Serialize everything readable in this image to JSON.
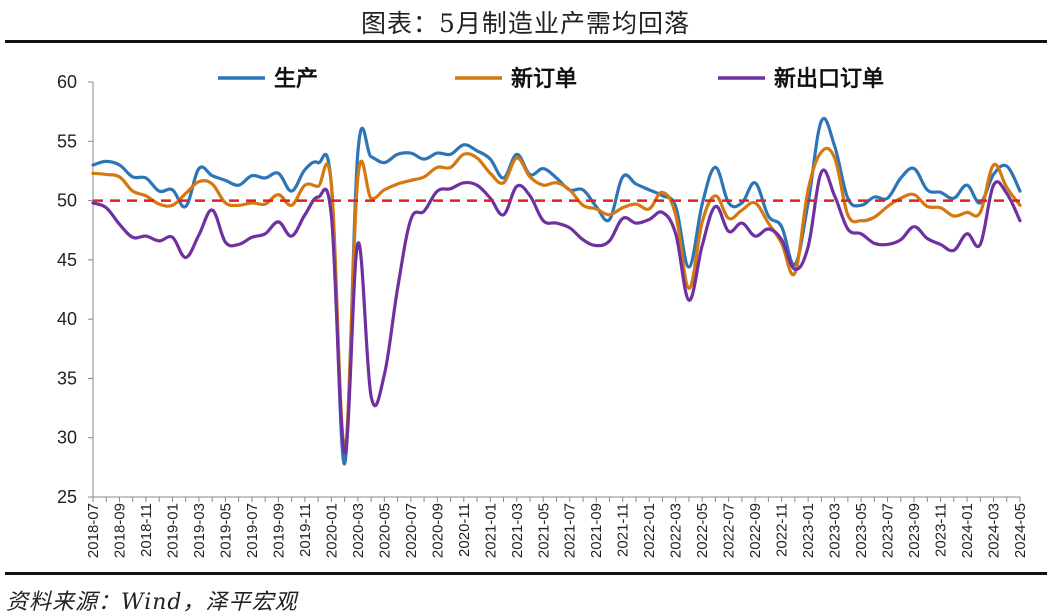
{
  "title": "图表：5月制造业产需均回落",
  "source": "资料来源：Wind，泽平宏观",
  "chart_data": {
    "type": "line",
    "ylim": [
      25,
      60
    ],
    "yticks": [
      25,
      30,
      35,
      40,
      45,
      50,
      55,
      60
    ],
    "reference_line": {
      "value": 50,
      "color": "#e02020",
      "style": "dashed"
    },
    "legend_position": "top",
    "x": [
      "2018-07",
      "2018-08",
      "2018-09",
      "2018-10",
      "2018-11",
      "2018-12",
      "2019-01",
      "2019-02",
      "2019-03",
      "2019-04",
      "2019-05",
      "2019-06",
      "2019-07",
      "2019-08",
      "2019-09",
      "2019-10",
      "2019-11",
      "2019-12",
      "2020-01",
      "2020-02",
      "2020-03",
      "2020-04",
      "2020-05",
      "2020-06",
      "2020-07",
      "2020-08",
      "2020-09",
      "2020-10",
      "2020-11",
      "2020-12",
      "2021-01",
      "2021-02",
      "2021-03",
      "2021-04",
      "2021-05",
      "2021-06",
      "2021-07",
      "2021-08",
      "2021-09",
      "2021-10",
      "2021-11",
      "2021-12",
      "2022-01",
      "2022-02",
      "2022-03",
      "2022-04",
      "2022-05",
      "2022-06",
      "2022-07",
      "2022-08",
      "2022-09",
      "2022-10",
      "2022-11",
      "2022-12",
      "2023-01",
      "2023-02",
      "2023-03",
      "2023-04",
      "2023-05",
      "2023-06",
      "2023-07",
      "2023-08",
      "2023-09",
      "2023-10",
      "2023-11",
      "2023-12",
      "2024-01",
      "2024-02",
      "2024-03",
      "2024-04",
      "2024-05"
    ],
    "xtick_labels": [
      "2018-07",
      "2018-09",
      "2018-11",
      "2019-01",
      "2019-03",
      "2019-05",
      "2019-07",
      "2019-09",
      "2019-11",
      "2020-01",
      "2020-03",
      "2020-05",
      "2020-07",
      "2020-09",
      "2020-11",
      "2021-01",
      "2021-03",
      "2021-05",
      "2021-07",
      "2021-09",
      "2021-11",
      "2022-01",
      "2022-03",
      "2022-05",
      "2022-07",
      "2022-09",
      "2022-11",
      "2023-01",
      "2023-03",
      "2023-05",
      "2023-07",
      "2023-09",
      "2023-11",
      "2024-01",
      "2024-03",
      "2024-05"
    ],
    "series": [
      {
        "name": "生产",
        "color": "#2e75b6",
        "values": [
          53.0,
          53.3,
          53.0,
          52.0,
          51.9,
          50.8,
          50.9,
          49.5,
          52.7,
          52.1,
          51.7,
          51.3,
          52.1,
          51.9,
          52.3,
          50.8,
          52.6,
          53.2,
          51.3,
          27.8,
          54.1,
          53.7,
          53.2,
          53.9,
          54.0,
          53.5,
          54.0,
          53.9,
          54.7,
          54.2,
          53.5,
          51.9,
          53.9,
          52.2,
          52.7,
          51.9,
          50.9,
          50.9,
          49.5,
          48.4,
          52.0,
          51.4,
          50.9,
          50.4,
          49.5,
          44.4,
          49.7,
          52.8,
          49.8,
          49.8,
          51.5,
          48.7,
          47.8,
          44.6,
          49.8,
          56.7,
          54.6,
          50.2,
          49.6,
          50.3,
          50.2,
          51.9,
          52.7,
          50.9,
          50.7,
          50.2,
          51.3,
          49.8,
          52.2,
          52.9,
          50.8
        ]
      },
      {
        "name": "新订单",
        "color": "#d4780f",
        "values": [
          52.3,
          52.2,
          52.0,
          50.8,
          50.4,
          49.7,
          49.6,
          50.6,
          51.6,
          51.4,
          49.8,
          49.6,
          49.8,
          49.7,
          50.5,
          49.6,
          51.3,
          51.2,
          51.4,
          29.3,
          52.0,
          50.2,
          50.9,
          51.4,
          51.7,
          52.0,
          52.8,
          52.8,
          53.9,
          53.6,
          52.3,
          51.5,
          53.6,
          52.0,
          51.3,
          51.5,
          50.9,
          49.6,
          49.3,
          48.8,
          49.4,
          49.7,
          49.3,
          50.7,
          48.8,
          42.6,
          48.2,
          50.4,
          48.5,
          49.2,
          49.8,
          48.1,
          46.4,
          43.9,
          50.9,
          54.1,
          53.6,
          48.8,
          48.3,
          48.6,
          49.5,
          50.2,
          50.5,
          49.5,
          49.4,
          48.7,
          49.0,
          49.0,
          53.0,
          51.1,
          49.6
        ]
      },
      {
        "name": "新出口订单",
        "color": "#7030a0",
        "values": [
          49.8,
          49.4,
          48.0,
          46.9,
          47.0,
          46.6,
          46.9,
          45.2,
          47.1,
          49.2,
          46.5,
          46.3,
          46.9,
          47.2,
          48.2,
          47.0,
          48.8,
          50.3,
          48.7,
          28.7,
          46.4,
          33.5,
          35.3,
          42.6,
          48.4,
          49.1,
          50.8,
          51.0,
          51.5,
          51.3,
          50.2,
          48.8,
          51.2,
          50.4,
          48.3,
          48.1,
          47.7,
          46.7,
          46.2,
          46.6,
          48.5,
          48.1,
          48.4,
          49.0,
          47.2,
          41.6,
          46.2,
          49.5,
          47.4,
          48.1,
          47.0,
          47.6,
          46.7,
          44.2,
          46.1,
          52.4,
          50.4,
          47.6,
          47.2,
          46.4,
          46.3,
          46.7,
          47.8,
          46.8,
          46.3,
          45.8,
          47.2,
          46.3,
          51.3,
          50.6,
          48.3
        ]
      }
    ]
  }
}
